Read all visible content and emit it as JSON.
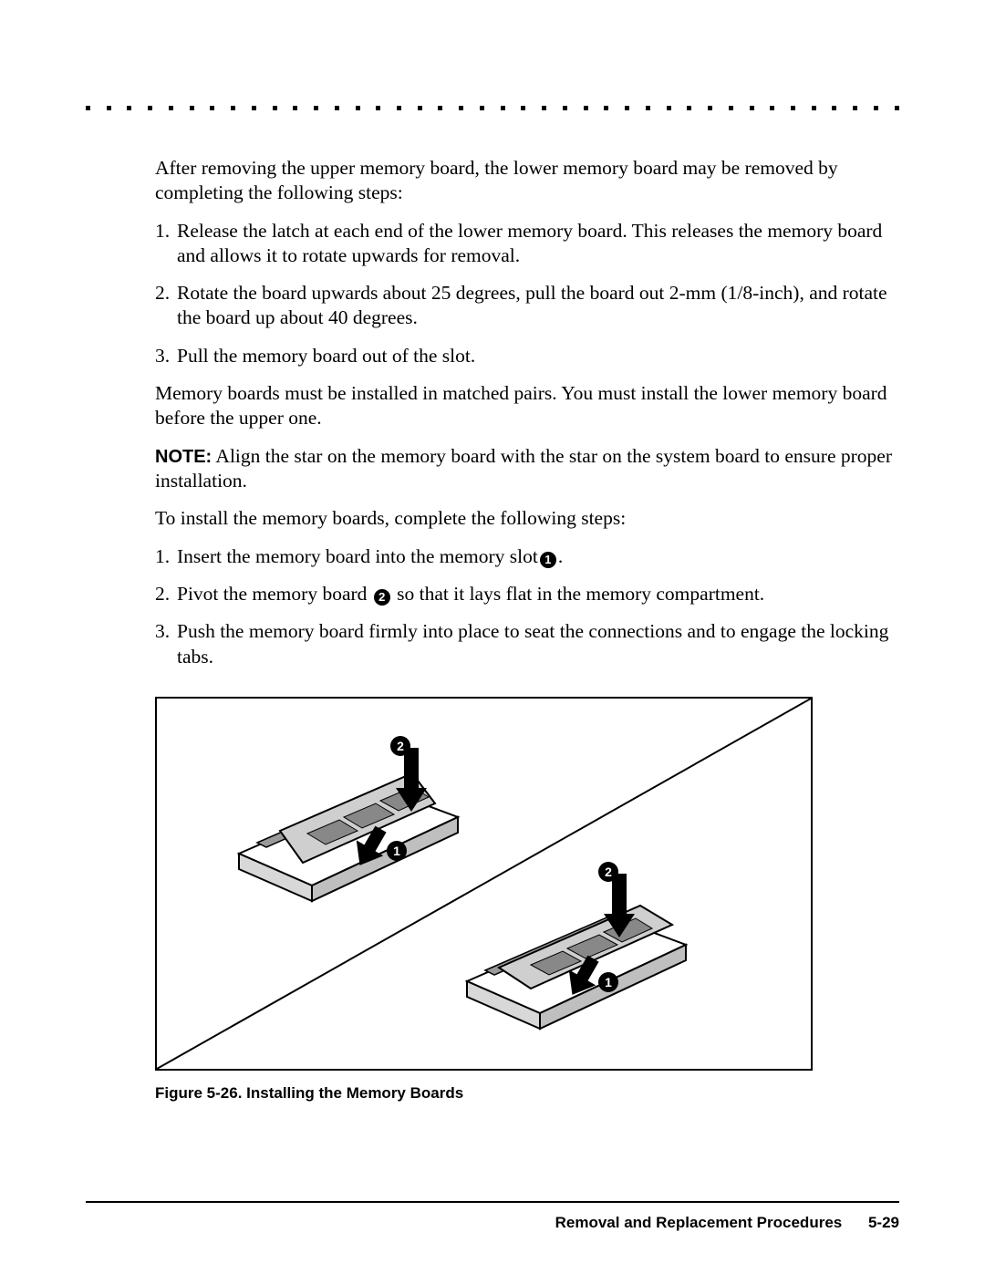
{
  "page": {
    "dotted_rule": {
      "dot_count": 40,
      "dot_color": "#000000"
    },
    "body": {
      "intro": "After removing the upper memory board, the lower memory board may be removed by completing the following steps:",
      "remove_steps": [
        "Release the latch at each end of the lower memory board. This releases the memory board and allows it to rotate upwards for removal.",
        "Rotate the board upwards about 25 degrees, pull the board out 2-mm (1/8-inch), and rotate the board up about 40 degrees.",
        "Pull the memory board out of the slot."
      ],
      "pair_note": "Memory boards must be installed in matched pairs. You must install the lower memory board before the upper one.",
      "note_label": "NOTE:",
      "note_body": "Align the star on the memory board with the star on the system board to ensure proper installation.",
      "install_intro": "To install the memory boards, complete the following steps:",
      "install_steps": [
        {
          "pre": "Insert the memory board into the memory slot",
          "callout": "1",
          "post": "."
        },
        {
          "pre": "Pivot the memory board ",
          "callout": "2",
          "post": " so that it lays flat in the memory compartment."
        },
        {
          "pre": "Push the memory board firmly into place to seat the connections and to engage the locking tabs.",
          "callout": null,
          "post": ""
        }
      ]
    },
    "figure": {
      "caption": "Figure 5-26.  Installing the Memory Boards",
      "callouts": {
        "one": "1",
        "two": "2"
      },
      "border_color": "#000000",
      "background": "#ffffff",
      "board_fill": "#c8c8c8",
      "board_edge": "#6f6f6f",
      "chip_fill": "#888888"
    },
    "footer": {
      "section": "Removal and Replacement Procedures",
      "page_number": "5-29"
    },
    "colors": {
      "text": "#000000",
      "background": "#ffffff"
    }
  }
}
